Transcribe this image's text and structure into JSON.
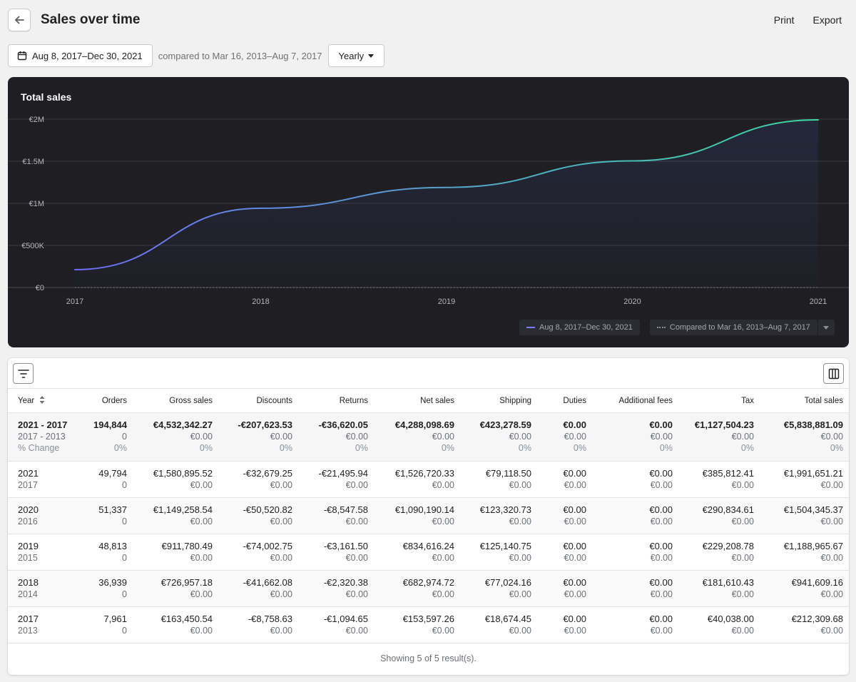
{
  "header": {
    "title": "Sales over time",
    "print_label": "Print",
    "export_label": "Export"
  },
  "filters": {
    "date_range": "Aug 8, 2017–Dec 30, 2021",
    "compare_text": "compared to Mar 16, 2013–Aug 7, 2017",
    "period": "Yearly"
  },
  "chart_data": {
    "type": "line",
    "title": "Total sales",
    "x": [
      "2017",
      "2018",
      "2019",
      "2020",
      "2021"
    ],
    "y_ticks": [
      "€0",
      "€500K",
      "€1M",
      "€1.5M",
      "€2M"
    ],
    "ylim": [
      0,
      2000000
    ],
    "series": [
      {
        "name": "Aug 8, 2017–Dec 30, 2021",
        "values": [
          212309.68,
          941609.16,
          1188965.67,
          1504345.37,
          1991651.21
        ],
        "color_start": "#6e6ef5",
        "color_end": "#3dd6a0"
      },
      {
        "name": "Compared to Mar 16, 2013–Aug 7, 2017",
        "values": [
          0,
          0,
          0,
          0,
          0
        ],
        "color": "#8c9196"
      }
    ],
    "grid": true,
    "legend": "bottom-right"
  },
  "table": {
    "columns": [
      "Year",
      "Orders",
      "Gross sales",
      "Discounts",
      "Returns",
      "Net sales",
      "Shipping",
      "Duties",
      "Additional fees",
      "Tax",
      "Total sales"
    ],
    "summary": {
      "label_current": "2021 - 2017",
      "label_compare": "2017 - 2013",
      "label_change": "% Change",
      "current": [
        "194,844",
        "€4,532,342.27",
        "-€207,623.53",
        "-€36,620.05",
        "€4,288,098.69",
        "€423,278.59",
        "€0.00",
        "€0.00",
        "€1,127,504.23",
        "€5,838,881.09"
      ],
      "compare": [
        "0",
        "€0.00",
        "€0.00",
        "€0.00",
        "€0.00",
        "€0.00",
        "€0.00",
        "€0.00",
        "€0.00",
        "€0.00"
      ],
      "change": [
        "0%",
        "0%",
        "0%",
        "0%",
        "0%",
        "0%",
        "0%",
        "0%",
        "0%",
        "0%"
      ]
    },
    "rows": [
      {
        "year": "2021",
        "compare_year": "2017",
        "values": [
          "49,794",
          "€1,580,895.52",
          "-€32,679.25",
          "-€21,495.94",
          "€1,526,720.33",
          "€79,118.50",
          "€0.00",
          "€0.00",
          "€385,812.41",
          "€1,991,651.21"
        ],
        "compare": [
          "0",
          "€0.00",
          "€0.00",
          "€0.00",
          "€0.00",
          "€0.00",
          "€0.00",
          "€0.00",
          "€0.00",
          "€0.00"
        ]
      },
      {
        "year": "2020",
        "compare_year": "2016",
        "values": [
          "51,337",
          "€1,149,258.54",
          "-€50,520.82",
          "-€8,547.58",
          "€1,090,190.14",
          "€123,320.73",
          "€0.00",
          "€0.00",
          "€290,834.61",
          "€1,504,345.37"
        ],
        "compare": [
          "0",
          "€0.00",
          "€0.00",
          "€0.00",
          "€0.00",
          "€0.00",
          "€0.00",
          "€0.00",
          "€0.00",
          "€0.00"
        ]
      },
      {
        "year": "2019",
        "compare_year": "2015",
        "values": [
          "48,813",
          "€911,780.49",
          "-€74,002.75",
          "-€3,161.50",
          "€834,616.24",
          "€125,140.75",
          "€0.00",
          "€0.00",
          "€229,208.78",
          "€1,188,965.67"
        ],
        "compare": [
          "0",
          "€0.00",
          "€0.00",
          "€0.00",
          "€0.00",
          "€0.00",
          "€0.00",
          "€0.00",
          "€0.00",
          "€0.00"
        ]
      },
      {
        "year": "2018",
        "compare_year": "2014",
        "values": [
          "36,939",
          "€726,957.18",
          "-€41,662.08",
          "-€2,320.38",
          "€682,974.72",
          "€77,024.16",
          "€0.00",
          "€0.00",
          "€181,610.43",
          "€941,609.16"
        ],
        "compare": [
          "0",
          "€0.00",
          "€0.00",
          "€0.00",
          "€0.00",
          "€0.00",
          "€0.00",
          "€0.00",
          "€0.00",
          "€0.00"
        ]
      },
      {
        "year": "2017",
        "compare_year": "2013",
        "values": [
          "7,961",
          "€163,450.54",
          "-€8,758.63",
          "-€1,094.65",
          "€153,597.26",
          "€18,674.45",
          "€0.00",
          "€0.00",
          "€40,038.00",
          "€212,309.68"
        ],
        "compare": [
          "0",
          "€0.00",
          "€0.00",
          "€0.00",
          "€0.00",
          "€0.00",
          "€0.00",
          "€0.00",
          "€0.00",
          "€0.00"
        ]
      }
    ],
    "footer": "Showing 5 of 5 result(s)."
  },
  "icons": {
    "back": "arrow-left-icon",
    "calendar": "calendar-icon",
    "caret": "caret-down-icon",
    "filter": "filter-icon",
    "columns": "columns-icon",
    "sort": "sort-icon"
  },
  "colors": {
    "chart_bg": "#1e1e23",
    "accent_start": "#6e6ef5",
    "accent_end": "#3dd6a0"
  }
}
